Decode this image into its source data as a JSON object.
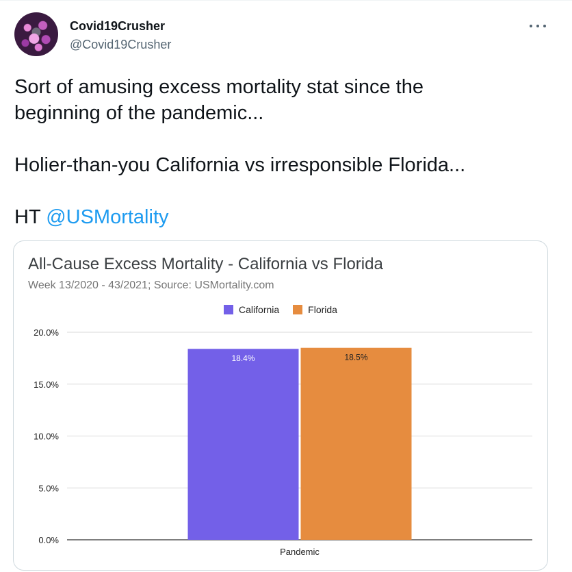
{
  "tweet": {
    "display_name": "Covid19Crusher",
    "handle": "@Covid19Crusher",
    "more_icon": "more-horizontal-icon",
    "text_lines": [
      "Sort of amusing excess mortality stat since the",
      "beginning of the pandemic..."
    ],
    "text_line_2": "Holier-than-you California vs irresponsible Florida...",
    "text_line_3_prefix": "HT ",
    "mention": "@USMortality"
  },
  "colors": {
    "mention": "#1d9bf0",
    "california": "#7360e8",
    "florida": "#e68c3f"
  },
  "chart_data": {
    "type": "bar",
    "title": "All-Cause Excess Mortality - California vs Florida",
    "subtitle": "Week 13/2020 - 43/2021; Source: USMortality.com",
    "categories": [
      "Pandemic"
    ],
    "series": [
      {
        "name": "California",
        "values": [
          18.4
        ],
        "label": "18.4%",
        "color": "#7360e8"
      },
      {
        "name": "Florida",
        "values": [
          18.5
        ],
        "label": "18.5%",
        "color": "#e68c3f"
      }
    ],
    "yticks": [
      "0.0%",
      "5.0%",
      "10.0%",
      "15.0%",
      "20.0%"
    ],
    "ytick_values": [
      0,
      5,
      10,
      15,
      20
    ],
    "ylim": [
      0,
      20
    ],
    "legend_position": "top-center",
    "grid": true
  }
}
